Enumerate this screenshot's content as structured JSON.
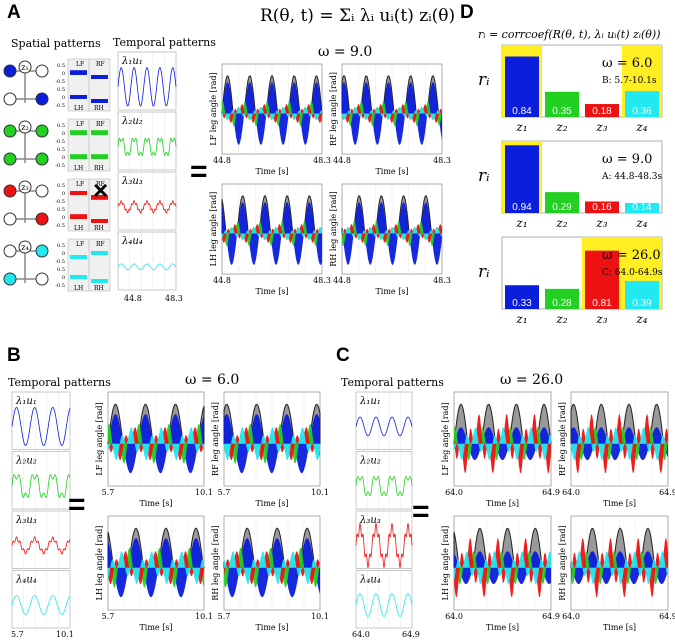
{
  "panels": {
    "A": {
      "letter": "A",
      "spatial_title": "Spatial patterns",
      "temporal_title": "Temporal patterns",
      "equation": "R(θ, t) = Σᵢ λᵢ uᵢ(t) zᵢ(θ)",
      "omega": "ω = 9.0",
      "times": "×",
      "equals": "=",
      "t_start": "44.8",
      "t_end": "48.3",
      "time_label": "Time [s]",
      "leg_labels": [
        "LF leg angle [rad]",
        "RF leg angle [rad]",
        "LH leg angle [rad]",
        "RH leg angle [rad]"
      ],
      "legs_grid": [
        "LF",
        "RF",
        "LH",
        "RH"
      ],
      "z_labels": [
        "z₁",
        "z₂",
        "z₃",
        "z₄"
      ],
      "u_labels": [
        "λ₁u₁",
        "λ₂u₂",
        "λ₃u₃",
        "λ₄u₄"
      ],
      "bar_ticks": [
        "1",
        "0.5",
        "0",
        "-0.5",
        "-1"
      ]
    },
    "B": {
      "letter": "B",
      "temporal_title": "Temporal patterns",
      "omega": "ω = 6.0",
      "equals": "=",
      "t_start": "5.7",
      "t_end": "10.1",
      "y_ticks": [
        "0.5",
        "0",
        "-0.5"
      ]
    },
    "C": {
      "letter": "C",
      "temporal_title": "Temporal patterns",
      "omega": "ω = 26.0",
      "equals": "=",
      "t_start": "64.0",
      "t_end": "64.9",
      "y_ticks": [
        "0.5",
        "0",
        "-0.5"
      ]
    },
    "D": {
      "letter": "D",
      "formula": "rᵢ = corrcoef(R(θ, t), λᵢ uᵢ(t) zᵢ(θ))",
      "ri": "rᵢ",
      "charts": [
        {
          "omega": "ω = 6.0",
          "window": "B: 5.7-10.1s",
          "values": [
            "0.84",
            "0.35",
            "0.18",
            "0.36"
          ],
          "highlight": [
            0,
            3
          ]
        },
        {
          "omega": "ω = 9.0",
          "window": "A: 44.8-48.3s",
          "values": [
            "0.94",
            "0.29",
            "0.16",
            "0.14"
          ],
          "highlight": [
            0
          ]
        },
        {
          "omega": "ω = 26.0",
          "window": "C: 64.0-64.9s",
          "values": [
            "0.33",
            "0.28",
            "0.81",
            "0.39"
          ],
          "highlight": [
            2,
            3
          ]
        }
      ]
    }
  },
  "chart_data": [
    {
      "type": "bar",
      "title": "ω = 6.0",
      "window": "B: 5.7-10.1s",
      "categories": [
        "z₁",
        "z₂",
        "z₃",
        "z₄"
      ],
      "values": [
        0.84,
        0.35,
        0.18,
        0.36
      ],
      "ylim": [
        0,
        1
      ],
      "ylabel": "rᵢ"
    },
    {
      "type": "bar",
      "title": "ω = 9.0",
      "window": "A: 44.8-48.3s",
      "categories": [
        "z₁",
        "z₂",
        "z₃",
        "z₄"
      ],
      "values": [
        0.94,
        0.29,
        0.16,
        0.14
      ],
      "ylim": [
        0,
        1
      ],
      "ylabel": "rᵢ"
    },
    {
      "type": "bar",
      "title": "ω = 26.0",
      "window": "C: 64.0-64.9s",
      "categories": [
        "z₁",
        "z₂",
        "z₃",
        "z₄"
      ],
      "values": [
        0.33,
        0.28,
        0.81,
        0.39
      ],
      "ylim": [
        0,
        1
      ],
      "ylabel": "rᵢ"
    }
  ],
  "colors": {
    "z1": "#0a1edc",
    "z2": "#22d022",
    "z3": "#ee1111",
    "z4": "#22e8f0",
    "black": "#222222",
    "highlight": "#ffee22"
  }
}
